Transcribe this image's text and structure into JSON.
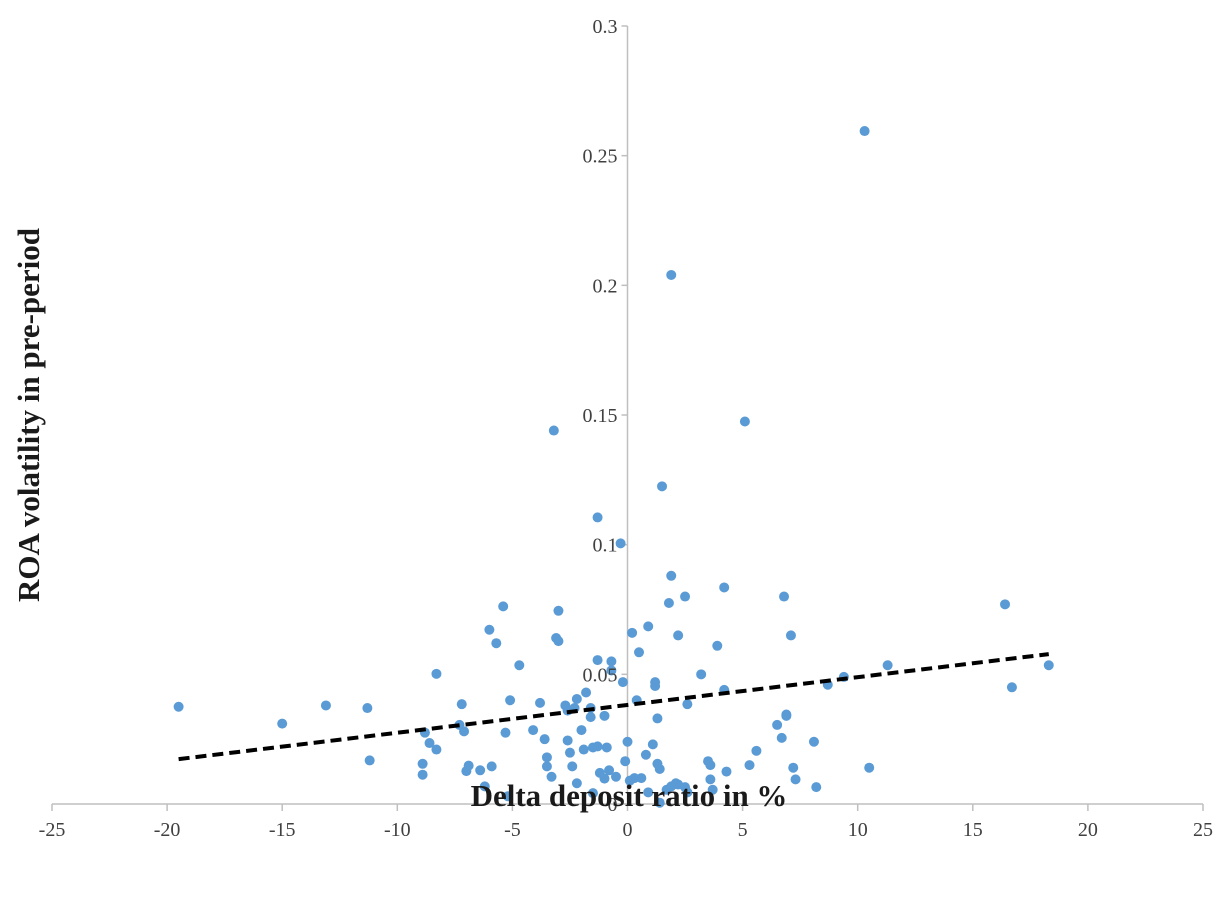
{
  "chart_data": {
    "type": "scatter",
    "title": "",
    "xlabel": "Delta deposit ratio in %",
    "ylabel": "ROA volatility in pre-period",
    "xlim": [
      -25,
      25
    ],
    "ylim": [
      0,
      0.3
    ],
    "x_ticks": [
      "-25",
      "-20",
      "-15",
      "-10",
      "-5",
      "0",
      "5",
      "10",
      "15",
      "20",
      "25"
    ],
    "y_ticks": [
      "0",
      "0.05",
      "0.1",
      "0.15",
      "0.2",
      "0.25",
      "0.3"
    ],
    "grid": false,
    "legend": "none",
    "colors": {
      "points": "#5b9bd5",
      "trendline": "#000000",
      "axis": "#bfbfbf"
    },
    "trendline": {
      "style": "dashed",
      "x": [
        -19.5,
        18.3
      ],
      "y": [
        0.0173,
        0.0578
      ]
    },
    "series": [
      {
        "points": [
          [
            -19.5,
            0.0375
          ],
          [
            -15.0,
            0.031
          ],
          [
            -13.1,
            0.038
          ],
          [
            -11.3,
            0.037
          ],
          [
            -11.2,
            0.0168
          ],
          [
            -8.9,
            0.0155
          ],
          [
            -8.9,
            0.0113
          ],
          [
            -8.8,
            0.0275
          ],
          [
            -8.6,
            0.0235
          ],
          [
            -8.3,
            0.021
          ],
          [
            -8.3,
            0.0502
          ],
          [
            -7.3,
            0.0305
          ],
          [
            -7.2,
            0.0385
          ],
          [
            -7.1,
            0.028
          ],
          [
            -7.0,
            0.0127
          ],
          [
            -6.9,
            0.0148
          ],
          [
            -6.4,
            0.013
          ],
          [
            -6.2,
            0.0068
          ],
          [
            -6.0,
            0.0672
          ],
          [
            -5.9,
            0.0145
          ],
          [
            -5.7,
            0.062
          ],
          [
            -5.4,
            0.0762
          ],
          [
            -5.3,
            0.0275
          ],
          [
            -5.2,
            0.003
          ],
          [
            -5.1,
            0.04
          ],
          [
            -4.7,
            0.0535
          ],
          [
            -4.1,
            0.0285
          ],
          [
            -3.8,
            0.039
          ],
          [
            -3.6,
            0.025
          ],
          [
            -3.5,
            0.018
          ],
          [
            -3.5,
            0.0145
          ],
          [
            -3.3,
            0.0105
          ],
          [
            -3.2,
            0.144
          ],
          [
            -3.1,
            0.064
          ],
          [
            -3.0,
            0.0628
          ],
          [
            -3.0,
            0.0745
          ],
          [
            -2.7,
            0.038
          ],
          [
            -2.6,
            0.036
          ],
          [
            -2.6,
            0.0245
          ],
          [
            -2.5,
            0.0198
          ],
          [
            -2.4,
            0.0145
          ],
          [
            -2.3,
            0.037
          ],
          [
            -2.2,
            0.0405
          ],
          [
            -2.2,
            0.008
          ],
          [
            -2.0,
            0.0285
          ],
          [
            -1.9,
            0.021
          ],
          [
            -1.8,
            0.043
          ],
          [
            -1.6,
            0.037
          ],
          [
            -1.6,
            0.0335
          ],
          [
            -1.5,
            0.0218
          ],
          [
            -1.5,
            0.0042
          ],
          [
            -1.3,
            0.1105
          ],
          [
            -1.3,
            0.0555
          ],
          [
            -1.3,
            0.0222
          ],
          [
            -1.2,
            0.012
          ],
          [
            -1.0,
            0.0098
          ],
          [
            -1.0,
            0.034
          ],
          [
            -0.9,
            0.0218
          ],
          [
            -0.8,
            0.013
          ],
          [
            -0.7,
            0.0515
          ],
          [
            -0.7,
            0.055
          ],
          [
            -0.5,
            0.0105
          ],
          [
            -0.3,
            0.1005
          ],
          [
            -0.2,
            0.047
          ],
          [
            -0.1,
            0.0165
          ],
          [
            0.0,
            0.024
          ],
          [
            0.1,
            0.009
          ],
          [
            0.2,
            0.066
          ],
          [
            0.3,
            0.01
          ],
          [
            0.4,
            0.04
          ],
          [
            0.5,
            0.0585
          ],
          [
            0.6,
            0.01
          ],
          [
            0.8,
            0.019
          ],
          [
            0.9,
            0.0045
          ],
          [
            0.9,
            0.0685
          ],
          [
            1.1,
            0.023
          ],
          [
            1.2,
            0.047
          ],
          [
            1.2,
            0.0455
          ],
          [
            1.3,
            0.033
          ],
          [
            1.3,
            0.0155
          ],
          [
            1.4,
            0.0135
          ],
          [
            1.4,
            0.0005
          ],
          [
            1.5,
            0.1225
          ],
          [
            1.7,
            0.0055
          ],
          [
            1.8,
            0.0775
          ],
          [
            1.9,
            0.204
          ],
          [
            1.9,
            0.088
          ],
          [
            1.9,
            0.0068
          ],
          [
            2.1,
            0.008
          ],
          [
            2.2,
            0.065
          ],
          [
            2.2,
            0.0075
          ],
          [
            2.5,
            0.0065
          ],
          [
            2.5,
            0.08
          ],
          [
            2.6,
            0.0385
          ],
          [
            2.6,
            0.0045
          ],
          [
            3.2,
            0.05
          ],
          [
            3.5,
            0.0165
          ],
          [
            3.6,
            0.015
          ],
          [
            3.6,
            0.0095
          ],
          [
            3.7,
            0.0055
          ],
          [
            3.9,
            0.061
          ],
          [
            4.2,
            0.044
          ],
          [
            4.2,
            0.0835
          ],
          [
            4.3,
            0.0125
          ],
          [
            5.1,
            0.1475
          ],
          [
            5.3,
            0.015
          ],
          [
            5.6,
            0.0205
          ],
          [
            6.5,
            0.0305
          ],
          [
            6.7,
            0.0255
          ],
          [
            6.8,
            0.08
          ],
          [
            6.9,
            0.034
          ],
          [
            6.9,
            0.0345
          ],
          [
            7.1,
            0.065
          ],
          [
            7.2,
            0.014
          ],
          [
            7.3,
            0.0095
          ],
          [
            8.1,
            0.024
          ],
          [
            8.2,
            0.0065
          ],
          [
            8.7,
            0.046
          ],
          [
            9.4,
            0.049
          ],
          [
            10.3,
            0.2595
          ],
          [
            10.5,
            0.014
          ],
          [
            11.3,
            0.0535
          ],
          [
            16.4,
            0.077
          ],
          [
            16.7,
            0.045
          ],
          [
            18.3,
            0.0535
          ]
        ]
      }
    ]
  }
}
